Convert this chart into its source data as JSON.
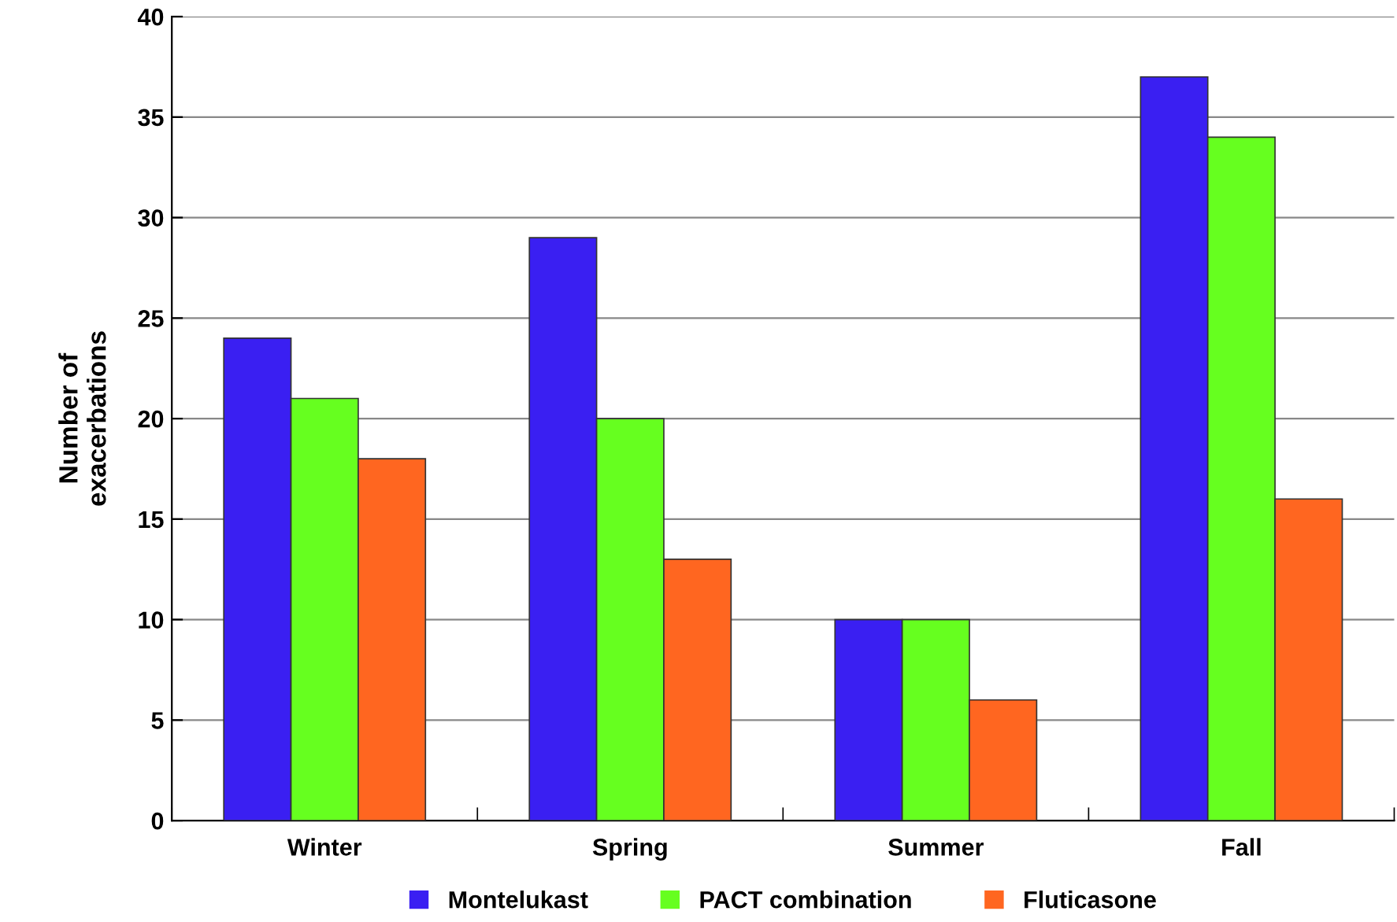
{
  "chart_data": {
    "type": "bar",
    "ylabel": "Number of\nexacerbations",
    "categories": [
      "Winter",
      "Spring",
      "Summer",
      "Fall"
    ],
    "series": [
      {
        "name": "Montelukast",
        "color": "#3a1ff2",
        "values": [
          24,
          29,
          10,
          37
        ]
      },
      {
        "name": "PACT combination",
        "color": "#66ff1f",
        "values": [
          21,
          20,
          10,
          34
        ]
      },
      {
        "name": "Fluticasone",
        "color": "#ff6620",
        "values": [
          18,
          13,
          6,
          16
        ]
      }
    ],
    "ylim": [
      0,
      40
    ],
    "yticks": [
      0,
      5,
      10,
      15,
      20,
      25,
      30,
      35,
      40
    ],
    "grid": "y",
    "legend": "bottom"
  }
}
